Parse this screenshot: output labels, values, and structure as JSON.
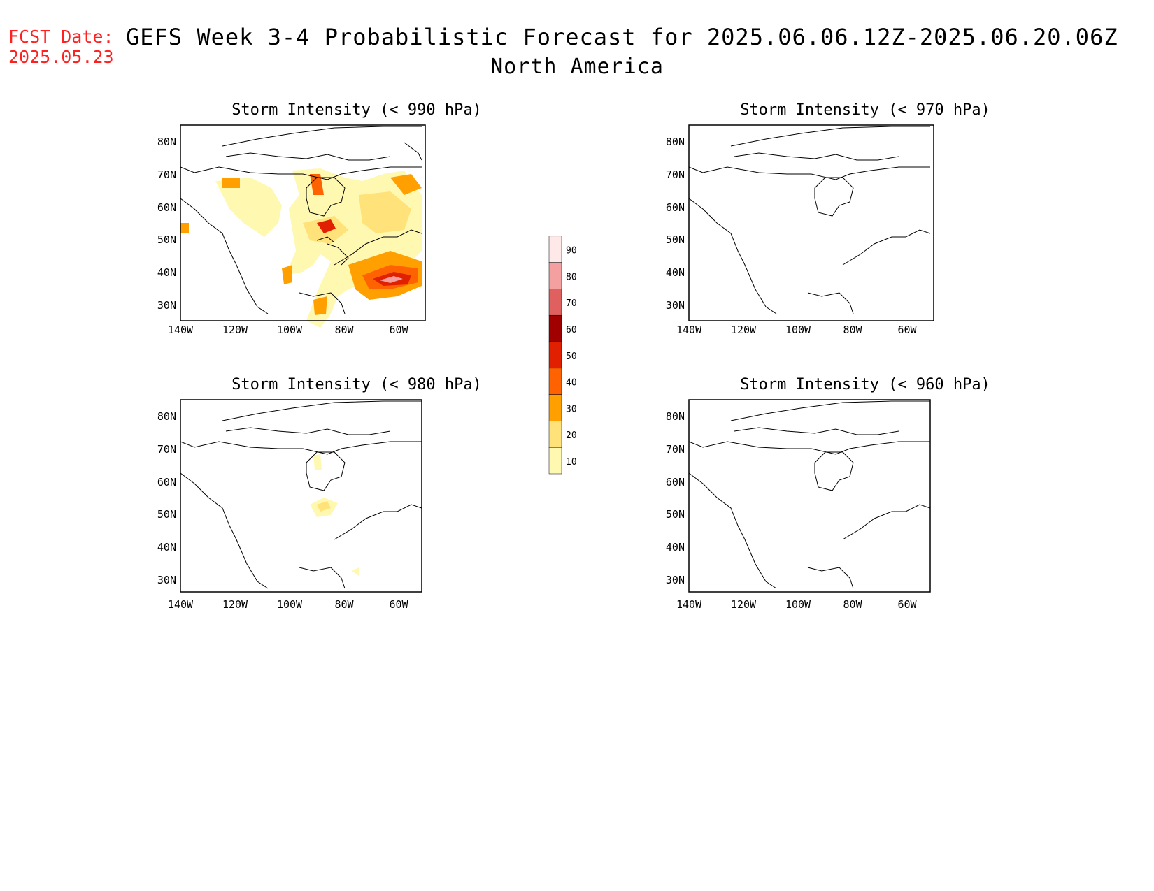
{
  "header": {
    "fcst_label": "FCST Date:",
    "fcst_date": "2025.05.23",
    "title": "GEFS Week 3-4 Probabilistic Forecast for 2025.06.06.12Z-2025.06.20.06Z",
    "subtitle": "North America"
  },
  "panels": [
    {
      "title": "Storm Intensity (< 990 hPa)"
    },
    {
      "title": "Storm Intensity (< 970 hPa)"
    },
    {
      "title": "Storm Intensity (< 980 hPa)"
    },
    {
      "title": "Storm Intensity (< 960 hPa)"
    }
  ],
  "axes": {
    "lat_labels": [
      "80N",
      "70N",
      "60N",
      "50N",
      "40N",
      "30N"
    ],
    "lon_labels": [
      "140W",
      "120W",
      "100W",
      "80W",
      "60W"
    ]
  },
  "colorbar": {
    "levels": [
      "10",
      "20",
      "30",
      "40",
      "50",
      "60",
      "70",
      "80",
      "90"
    ],
    "colors": [
      "#fff8b0",
      "#ffe27a",
      "#ffa000",
      "#ff6200",
      "#e02000",
      "#a00000",
      "#e06060",
      "#f4a0a0",
      "#ffe8e8"
    ]
  }
}
